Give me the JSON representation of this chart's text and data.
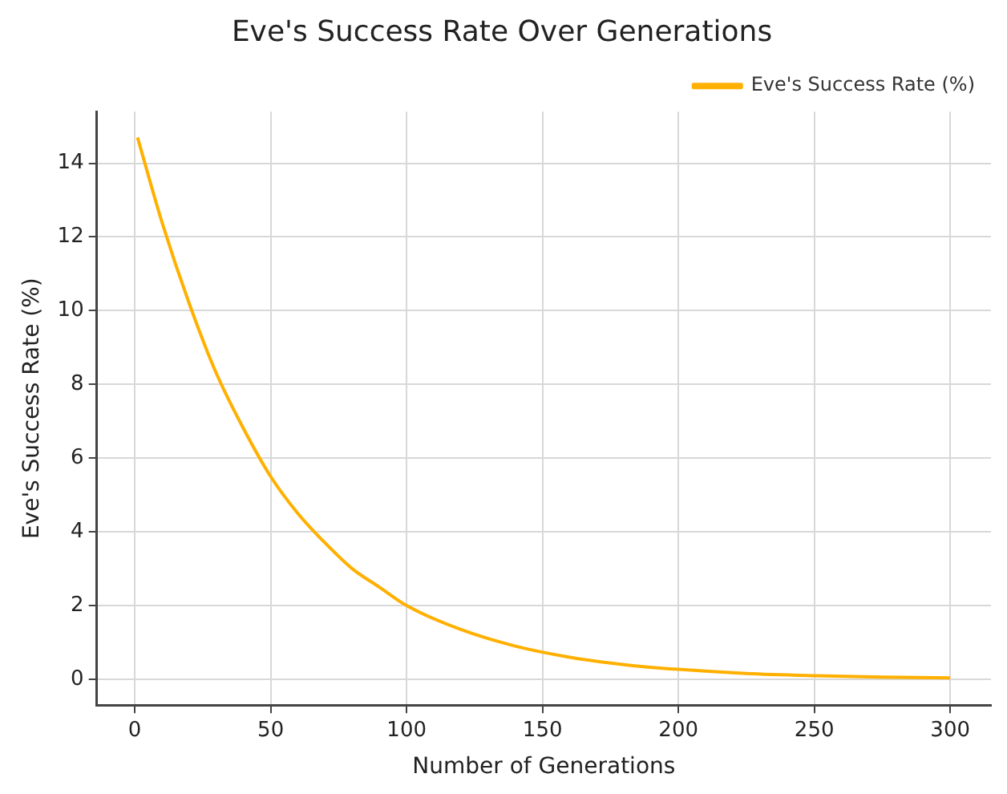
{
  "chart_data": {
    "type": "line",
    "title": "Eve's Success Rate Over Generations",
    "xlabel": "Number of Generations",
    "ylabel": "Eve's Success Rate (%)",
    "x": [
      1,
      10,
      20,
      30,
      40,
      50,
      60,
      70,
      80,
      90,
      100,
      120,
      140,
      160,
      180,
      200,
      225,
      250,
      275,
      300
    ],
    "series": [
      {
        "name": "Eve's Success Rate (%)",
        "color": "#ffb000",
        "values": [
          14.7,
          12.4,
          10.2,
          8.3,
          6.8,
          5.5,
          4.5,
          3.7,
          3.0,
          2.5,
          2.0,
          1.35,
          0.9,
          0.6,
          0.4,
          0.27,
          0.16,
          0.1,
          0.06,
          0.04
        ]
      }
    ],
    "xlim": [
      -14,
      315
    ],
    "xticks": [
      0,
      50,
      100,
      150,
      200,
      250,
      300
    ],
    "ylim": [
      -0.7,
      15.4
    ],
    "yticks": [
      0,
      2,
      4,
      6,
      8,
      10,
      12,
      14
    ],
    "grid": true,
    "legend": "top right",
    "marker": "none",
    "line_style": "solid"
  }
}
